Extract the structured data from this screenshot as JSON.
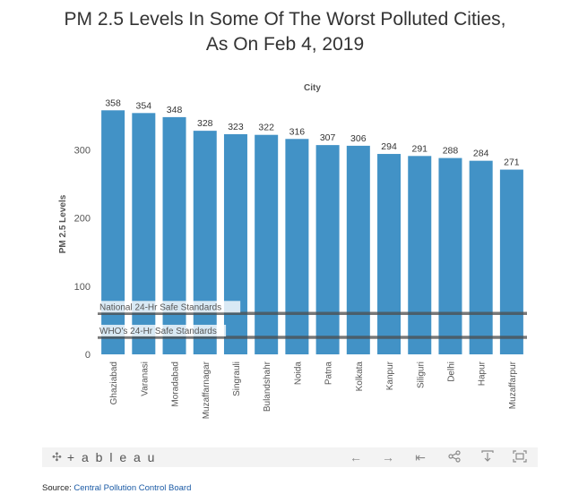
{
  "title_line1": "PM 2.5 Levels In Some Of The Worst Polluted Cities,",
  "title_line2": "As On Feb 4, 2019",
  "chart_data": {
    "type": "bar",
    "column_header": "City",
    "ylabel": "PM 2.5 Levels",
    "categories": [
      "Ghaziabad",
      "Varanasi",
      "Moradabad",
      "Muzaffarnagar",
      "Singrauli",
      "Bulandshahr",
      "Noida",
      "Patna",
      "Kolkata",
      "Kanpur",
      "Siliguri",
      "Delhi",
      "Hapur",
      "Muzaffarpur"
    ],
    "values": [
      358,
      354,
      348,
      328,
      323,
      322,
      316,
      307,
      306,
      294,
      291,
      288,
      284,
      271
    ],
    "ylim": [
      0,
      382
    ],
    "yticks": [
      0,
      100,
      200,
      300
    ],
    "bar_color": "#4292c6",
    "reference_lines": [
      {
        "label": "National 24-Hr Safe Standards",
        "value": 60
      },
      {
        "label": "WHO's 24-Hr Safe Standards",
        "value": 25
      }
    ],
    "grid": false
  },
  "toolbar": {
    "logo_text": "+ a b l e a u",
    "icons": [
      "undo-icon",
      "redo-icon",
      "revert-icon",
      "share-icon",
      "download-icon",
      "fullscreen-icon"
    ]
  },
  "source": {
    "label": "Source:",
    "link_text": "Central Pollution Control Board"
  }
}
